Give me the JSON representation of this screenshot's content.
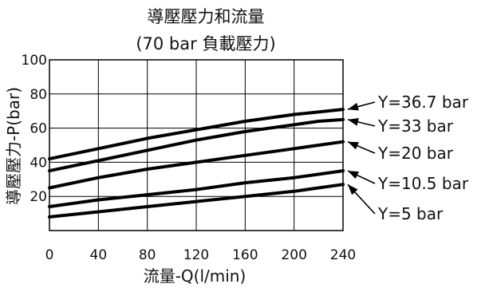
{
  "chart_data": {
    "type": "line",
    "title": "導壓壓力和流量",
    "subtitle": "(70 bar 負載壓力)",
    "xlabel": "流量-Q(l/min)",
    "ylabel": "導壓壓力-P(bar)",
    "xlim": [
      0,
      240
    ],
    "ylim": [
      0,
      100
    ],
    "x_ticks": [
      "0",
      "40",
      "80",
      "120",
      "160",
      "200",
      "240"
    ],
    "y_ticks": [
      "20",
      "40",
      "60",
      "80",
      "100"
    ],
    "grid": true,
    "legend": "right, leader arrows",
    "series": [
      {
        "name": "Y=36.7 bar",
        "x": [
          0,
          40,
          80,
          120,
          160,
          200,
          240
        ],
        "y": [
          42,
          48,
          54,
          59,
          64,
          68,
          71
        ]
      },
      {
        "name": "Y=33 bar",
        "x": [
          0,
          40,
          80,
          120,
          160,
          200,
          220,
          240
        ],
        "y": [
          35,
          41,
          47,
          53,
          58,
          62,
          64,
          65
        ]
      },
      {
        "name": "Y=20 bar",
        "x": [
          0,
          40,
          80,
          120,
          160,
          200,
          240
        ],
        "y": [
          25,
          31,
          36,
          40,
          44,
          48,
          52
        ]
      },
      {
        "name": "Y=10.5 bar",
        "x": [
          0,
          40,
          80,
          120,
          160,
          200,
          240
        ],
        "y": [
          14,
          18,
          21,
          24,
          28,
          31,
          35
        ]
      },
      {
        "name": "Y=5 bar",
        "x": [
          0,
          40,
          80,
          120,
          160,
          200,
          240
        ],
        "y": [
          8,
          11,
          14,
          17,
          20,
          23,
          27
        ]
      }
    ]
  }
}
